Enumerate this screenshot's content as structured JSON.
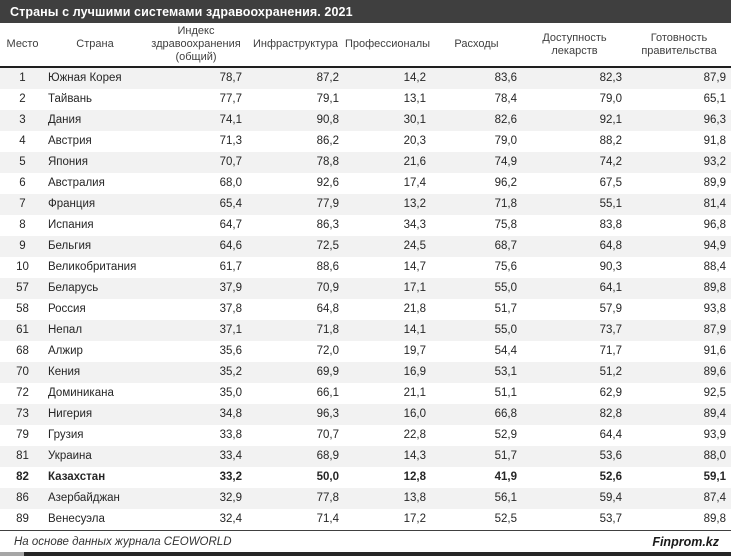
{
  "title": "Страны с лучшими системами здравоохранения. 2021",
  "table": {
    "columns": [
      "Место",
      "Страна",
      "Индекс здравоохранения (общий)",
      "Инфраструктура",
      "Профессионалы",
      "Расходы",
      "Доступность лекарств",
      "Готовность правительства"
    ],
    "rows": [
      {
        "place": "1",
        "country": "Южная Корея",
        "values": [
          "78,7",
          "87,2",
          "14,2",
          "83,6",
          "82,3",
          "87,9"
        ],
        "bold": false
      },
      {
        "place": "2",
        "country": "Тайвань",
        "values": [
          "77,7",
          "79,1",
          "13,1",
          "78,4",
          "79,0",
          "65,1"
        ],
        "bold": false
      },
      {
        "place": "3",
        "country": "Дания",
        "values": [
          "74,1",
          "90,8",
          "30,1",
          "82,6",
          "92,1",
          "96,3"
        ],
        "bold": false
      },
      {
        "place": "4",
        "country": "Австрия",
        "values": [
          "71,3",
          "86,2",
          "20,3",
          "79,0",
          "88,2",
          "91,8"
        ],
        "bold": false
      },
      {
        "place": "5",
        "country": "Япония",
        "values": [
          "70,7",
          "78,8",
          "21,6",
          "74,9",
          "74,2",
          "93,2"
        ],
        "bold": false
      },
      {
        "place": "6",
        "country": "Австралия",
        "values": [
          "68,0",
          "92,6",
          "17,4",
          "96,2",
          "67,5",
          "89,9"
        ],
        "bold": false
      },
      {
        "place": "7",
        "country": "Франция",
        "values": [
          "65,4",
          "77,9",
          "13,2",
          "71,8",
          "55,1",
          "81,4"
        ],
        "bold": false
      },
      {
        "place": "8",
        "country": "Испания",
        "values": [
          "64,7",
          "86,3",
          "34,3",
          "75,8",
          "83,8",
          "96,8"
        ],
        "bold": false
      },
      {
        "place": "9",
        "country": "Бельгия",
        "values": [
          "64,6",
          "72,5",
          "24,5",
          "68,7",
          "64,8",
          "94,9"
        ],
        "bold": false
      },
      {
        "place": "10",
        "country": "Великобритания",
        "values": [
          "61,7",
          "88,6",
          "14,7",
          "75,6",
          "90,3",
          "88,4"
        ],
        "bold": false
      },
      {
        "place": "57",
        "country": "Беларусь",
        "values": [
          "37,9",
          "70,9",
          "17,1",
          "55,0",
          "64,1",
          "89,8"
        ],
        "bold": false
      },
      {
        "place": "58",
        "country": "Россия",
        "values": [
          "37,8",
          "64,8",
          "21,8",
          "51,7",
          "57,9",
          "93,8"
        ],
        "bold": false
      },
      {
        "place": "61",
        "country": "Непал",
        "values": [
          "37,1",
          "71,8",
          "14,1",
          "55,0",
          "73,7",
          "87,9"
        ],
        "bold": false
      },
      {
        "place": "68",
        "country": "Алжир",
        "values": [
          "35,6",
          "72,0",
          "19,7",
          "54,4",
          "71,7",
          "91,6"
        ],
        "bold": false
      },
      {
        "place": "70",
        "country": "Кения",
        "values": [
          "35,2",
          "69,9",
          "16,9",
          "53,1",
          "51,2",
          "89,6"
        ],
        "bold": false
      },
      {
        "place": "72",
        "country": "Доминикана",
        "values": [
          "35,0",
          "66,1",
          "21,1",
          "51,1",
          "62,9",
          "92,5"
        ],
        "bold": false
      },
      {
        "place": "73",
        "country": "Нигерия",
        "values": [
          "34,8",
          "96,3",
          "16,0",
          "66,8",
          "82,8",
          "89,4"
        ],
        "bold": false
      },
      {
        "place": "79",
        "country": "Грузия",
        "values": [
          "33,8",
          "70,7",
          "22,8",
          "52,9",
          "64,4",
          "93,9"
        ],
        "bold": false
      },
      {
        "place": "81",
        "country": "Украина",
        "values": [
          "33,4",
          "68,9",
          "14,3",
          "51,7",
          "53,6",
          "88,0"
        ],
        "bold": false
      },
      {
        "place": "82",
        "country": "Казахстан",
        "values": [
          "33,2",
          "50,0",
          "12,8",
          "41,9",
          "52,6",
          "59,1"
        ],
        "bold": true
      },
      {
        "place": "86",
        "country": "Азербайджан",
        "values": [
          "32,9",
          "77,8",
          "13,8",
          "56,1",
          "59,4",
          "87,4"
        ],
        "bold": false
      },
      {
        "place": "89",
        "country": "Венесуэла",
        "values": [
          "32,4",
          "71,4",
          "17,2",
          "52,5",
          "53,7",
          "89,8"
        ],
        "bold": false
      }
    ]
  },
  "footer": {
    "source": "На основе данных журнала CEOWORLD",
    "brand": "Finprom.kz"
  },
  "colors": {
    "title_bar_bg": "#3f3f3f",
    "stripe": "#f2f2f2",
    "border_dark": "#262626",
    "header_text": "#404040"
  },
  "chart_data": {
    "type": "table",
    "title": "Страны с лучшими системами здравоохранения. 2021",
    "columns": [
      "Место",
      "Страна",
      "Индекс здравоохранения (общий)",
      "Инфраструктура",
      "Профессионалы",
      "Расходы",
      "Доступность лекарств",
      "Готовность правительства"
    ],
    "rows": [
      [
        1,
        "Южная Корея",
        78.7,
        87.2,
        14.2,
        83.6,
        82.3,
        87.9
      ],
      [
        2,
        "Тайвань",
        77.7,
        79.1,
        13.1,
        78.4,
        79.0,
        65.1
      ],
      [
        3,
        "Дания",
        74.1,
        90.8,
        30.1,
        82.6,
        92.1,
        96.3
      ],
      [
        4,
        "Австрия",
        71.3,
        86.2,
        20.3,
        79.0,
        88.2,
        91.8
      ],
      [
        5,
        "Япония",
        70.7,
        78.8,
        21.6,
        74.9,
        74.2,
        93.2
      ],
      [
        6,
        "Австралия",
        68.0,
        92.6,
        17.4,
        96.2,
        67.5,
        89.9
      ],
      [
        7,
        "Франция",
        65.4,
        77.9,
        13.2,
        71.8,
        55.1,
        81.4
      ],
      [
        8,
        "Испания",
        64.7,
        86.3,
        34.3,
        75.8,
        83.8,
        96.8
      ],
      [
        9,
        "Бельгия",
        64.6,
        72.5,
        24.5,
        68.7,
        64.8,
        94.9
      ],
      [
        10,
        "Великобритания",
        61.7,
        88.6,
        14.7,
        75.6,
        90.3,
        88.4
      ],
      [
        57,
        "Беларусь",
        37.9,
        70.9,
        17.1,
        55.0,
        64.1,
        89.8
      ],
      [
        58,
        "Россия",
        37.8,
        64.8,
        21.8,
        51.7,
        57.9,
        93.8
      ],
      [
        61,
        "Непал",
        37.1,
        71.8,
        14.1,
        55.0,
        73.7,
        87.9
      ],
      [
        68,
        "Алжир",
        35.6,
        72.0,
        19.7,
        54.4,
        71.7,
        91.6
      ],
      [
        70,
        "Кения",
        35.2,
        69.9,
        16.9,
        53.1,
        51.2,
        89.6
      ],
      [
        72,
        "Доминикана",
        35.0,
        66.1,
        21.1,
        51.1,
        62.9,
        92.5
      ],
      [
        73,
        "Нигерия",
        34.8,
        96.3,
        16.0,
        66.8,
        82.8,
        89.4
      ],
      [
        79,
        "Грузия",
        33.8,
        70.7,
        22.8,
        52.9,
        64.4,
        93.9
      ],
      [
        81,
        "Украина",
        33.4,
        68.9,
        14.3,
        51.7,
        53.6,
        88.0
      ],
      [
        82,
        "Казахстан",
        33.2,
        50.0,
        12.8,
        41.9,
        52.6,
        59.1
      ],
      [
        86,
        "Азербайджан",
        32.9,
        77.8,
        13.8,
        56.1,
        59.4,
        87.4
      ],
      [
        89,
        "Венесуэла",
        32.4,
        71.4,
        17.2,
        52.5,
        53.7,
        89.8
      ]
    ],
    "highlighted_row": "Казахстан",
    "source": "На основе данных журнала CEOWORLD"
  }
}
